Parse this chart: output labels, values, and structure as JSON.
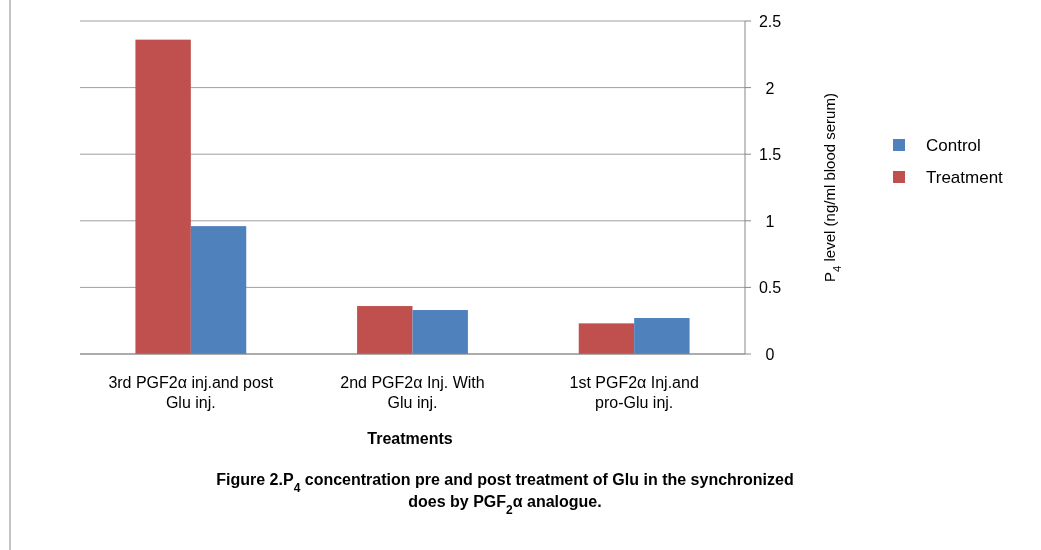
{
  "chart_data": {
    "type": "bar",
    "title": "Figure 2.P$_{4}$ concentration pre and post treatment of Glu in the synchronized does by PGF$_{2}$α analogue.",
    "xlabel": "Treatments",
    "ylabel": "P$_{4}$ level (ng/ml blood serum)",
    "categories": [
      "3rd PGF2α inj.and post Glu inj.",
      "2nd PGF2α Inj. With Glu inj.",
      "1st PGF2α Inj.and pro-Glu inj."
    ],
    "series": [
      {
        "name": "Treatment",
        "color": "#c0504d",
        "values": [
          2.36,
          0.36,
          0.23
        ]
      },
      {
        "name": "Control",
        "color": "#4f81bd",
        "values": [
          0.96,
          0.33,
          0.27
        ]
      }
    ],
    "ylim": [
      0,
      2.5
    ],
    "yticks": [
      0,
      0.5,
      1,
      1.5,
      2,
      2.5
    ],
    "grid": "y",
    "legend": "right"
  }
}
